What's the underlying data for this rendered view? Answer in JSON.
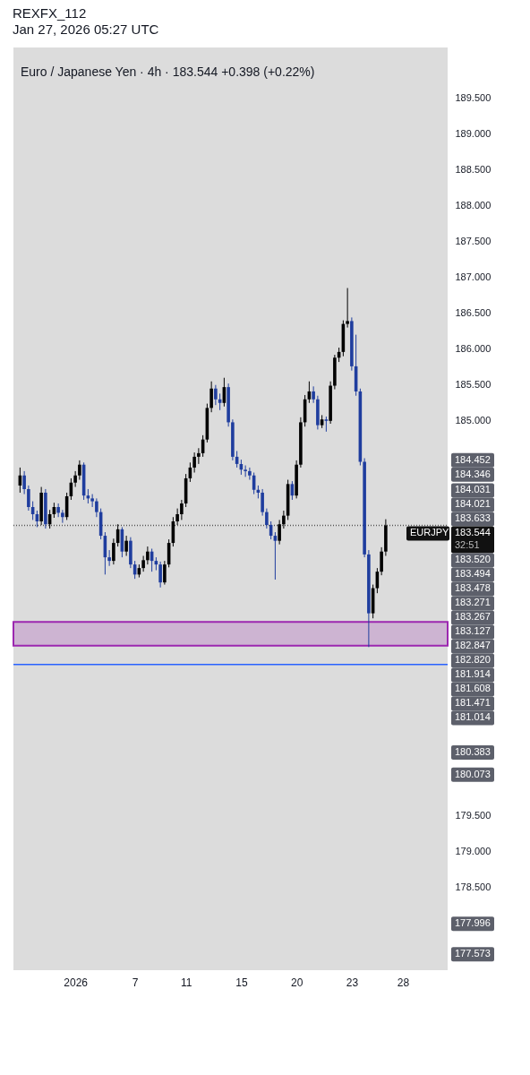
{
  "chart_data": {
    "type": "candlestick",
    "title": "REXFX_112",
    "subtitle": "Jan 27, 2026 05:27 UTC",
    "categories": [
      null,
      null,
      null,
      null,
      null,
      null,
      null,
      null,
      null,
      null,
      null,
      null,
      null,
      "2026",
      null,
      null,
      null,
      null,
      null,
      null,
      null,
      null,
      null,
      null,
      null,
      null,
      null,
      "7",
      null,
      null,
      null,
      null,
      null,
      null,
      null,
      null,
      null,
      null,
      null,
      "11",
      null,
      null,
      null,
      null,
      null,
      null,
      null,
      null,
      null,
      null,
      null,
      null,
      "15",
      null,
      null,
      null,
      null,
      null,
      null,
      null,
      null,
      null,
      null,
      null,
      null,
      "20",
      null,
      null,
      null,
      null,
      null,
      null,
      null,
      null,
      null,
      null,
      null,
      null,
      "23",
      null,
      null,
      null,
      null,
      null,
      null,
      null,
      null,
      null,
      null,
      null,
      "28",
      null,
      null,
      null,
      null,
      null,
      null,
      null,
      null,
      null
    ],
    "ohlc": [
      [
        184.1,
        184.35,
        184.0,
        184.24
      ],
      [
        184.24,
        184.3,
        183.98,
        184.05
      ],
      [
        184.05,
        184.1,
        183.75,
        183.8
      ],
      [
        183.8,
        183.88,
        183.62,
        183.7
      ],
      [
        183.7,
        183.75,
        183.52,
        183.6
      ],
      [
        183.6,
        184.08,
        183.55,
        184.0
      ],
      [
        184.0,
        184.05,
        183.5,
        183.56
      ],
      [
        183.56,
        183.76,
        183.5,
        183.7
      ],
      [
        183.7,
        183.86,
        183.65,
        183.8
      ],
      [
        183.8,
        183.85,
        183.66,
        183.72
      ],
      [
        183.72,
        183.76,
        183.58,
        183.66
      ],
      [
        183.66,
        184.0,
        183.62,
        183.95
      ],
      [
        183.95,
        184.2,
        183.9,
        184.14
      ],
      [
        184.14,
        184.3,
        184.08,
        184.24
      ],
      [
        184.24,
        184.45,
        184.18,
        184.39
      ],
      [
        184.39,
        184.42,
        183.9,
        183.96
      ],
      [
        183.96,
        184.05,
        183.85,
        183.92
      ],
      [
        183.92,
        183.98,
        183.8,
        183.88
      ],
      [
        183.88,
        183.92,
        183.66,
        183.73
      ],
      [
        183.73,
        183.78,
        183.35,
        183.4
      ],
      [
        183.4,
        183.45,
        182.86,
        183.1
      ],
      [
        183.1,
        183.2,
        182.98,
        183.05
      ],
      [
        183.05,
        183.36,
        183.0,
        183.3
      ],
      [
        183.3,
        183.56,
        183.25,
        183.49
      ],
      [
        183.49,
        183.52,
        183.1,
        183.18
      ],
      [
        183.18,
        183.4,
        183.12,
        183.33
      ],
      [
        183.33,
        183.38,
        182.95,
        183.0
      ],
      [
        183.0,
        183.05,
        182.8,
        182.86
      ],
      [
        182.86,
        183.0,
        182.82,
        182.95
      ],
      [
        182.95,
        183.12,
        182.9,
        183.06
      ],
      [
        183.06,
        183.25,
        183.0,
        183.18
      ],
      [
        183.18,
        183.22,
        182.9,
        183.05
      ],
      [
        183.05,
        183.1,
        182.92,
        183.0
      ],
      [
        183.0,
        183.04,
        182.68,
        182.75
      ],
      [
        182.75,
        183.05,
        182.72,
        183.0
      ],
      [
        183.0,
        183.35,
        182.96,
        183.3
      ],
      [
        183.3,
        183.66,
        183.25,
        183.6
      ],
      [
        183.6,
        183.78,
        183.55,
        183.7
      ],
      [
        183.7,
        183.9,
        183.62,
        183.85
      ],
      [
        183.85,
        184.26,
        183.8,
        184.2
      ],
      [
        184.2,
        184.42,
        184.15,
        184.35
      ],
      [
        184.35,
        184.56,
        184.28,
        184.5
      ],
      [
        184.5,
        184.62,
        184.4,
        184.55
      ],
      [
        184.55,
        184.8,
        184.5,
        184.74
      ],
      [
        184.74,
        185.24,
        184.7,
        185.18
      ],
      [
        185.18,
        185.55,
        185.12,
        185.45
      ],
      [
        185.45,
        185.5,
        185.22,
        185.3
      ],
      [
        185.3,
        185.38,
        185.15,
        185.25
      ],
      [
        185.25,
        185.6,
        185.2,
        185.47
      ],
      [
        185.47,
        185.52,
        184.92,
        184.98
      ],
      [
        184.98,
        185.02,
        184.45,
        184.5
      ],
      [
        184.5,
        184.58,
        184.35,
        184.4
      ],
      [
        184.4,
        184.46,
        184.25,
        184.32
      ],
      [
        184.32,
        184.38,
        184.22,
        184.3
      ],
      [
        184.3,
        184.35,
        184.18,
        184.24
      ],
      [
        184.24,
        184.28,
        183.98,
        184.04
      ],
      [
        184.04,
        184.1,
        183.92,
        184.0
      ],
      [
        184.0,
        184.05,
        183.68,
        183.73
      ],
      [
        183.73,
        183.78,
        183.5,
        183.55
      ],
      [
        183.55,
        183.6,
        183.35,
        183.4
      ],
      [
        183.4,
        183.45,
        182.79,
        183.33
      ],
      [
        183.33,
        183.62,
        183.28,
        183.56
      ],
      [
        183.56,
        183.75,
        183.5,
        183.68
      ],
      [
        183.68,
        184.18,
        183.62,
        184.12
      ],
      [
        184.12,
        184.16,
        183.9,
        183.96
      ],
      [
        183.96,
        184.45,
        183.92,
        184.39
      ],
      [
        184.39,
        185.05,
        184.35,
        184.98
      ],
      [
        184.98,
        185.36,
        184.92,
        185.3
      ],
      [
        185.3,
        185.55,
        185.25,
        185.41
      ],
      [
        185.41,
        185.48,
        185.25,
        185.3
      ],
      [
        185.3,
        185.35,
        184.88,
        184.94
      ],
      [
        184.94,
        185.08,
        184.9,
        185.02
      ],
      [
        185.02,
        185.06,
        184.85,
        185.0
      ],
      [
        185.0,
        185.55,
        184.96,
        185.49
      ],
      [
        185.49,
        185.92,
        185.44,
        185.88
      ],
      [
        185.88,
        186.02,
        185.82,
        185.96
      ],
      [
        185.96,
        186.4,
        185.9,
        186.35
      ],
      [
        186.35,
        186.85,
        186.3,
        186.39
      ],
      [
        186.39,
        186.44,
        185.7,
        185.76
      ],
      [
        185.76,
        186.2,
        185.35,
        185.41
      ],
      [
        185.41,
        185.45,
        184.38,
        184.43
      ],
      [
        184.43,
        184.48,
        183.1,
        183.14
      ],
      [
        183.14,
        183.2,
        181.85,
        182.32
      ],
      [
        182.32,
        182.72,
        182.25,
        182.67
      ],
      [
        182.67,
        182.95,
        182.6,
        182.9
      ],
      [
        182.9,
        183.24,
        182.85,
        183.18
      ],
      [
        183.18,
        183.63,
        183.12,
        183.544
      ],
      null,
      null,
      null,
      null,
      null,
      null,
      null,
      null,
      null,
      null,
      null,
      null,
      null
    ],
    "colors": [
      "#000000",
      "#1f3d9e",
      "#1f3d9e",
      "#1f3d9e",
      "#1f3d9e",
      "#000000",
      "#1f3d9e",
      "#000000",
      "#000000",
      "#1f3d9e",
      "#1f3d9e",
      "#000000",
      "#000000",
      "#000000",
      "#000000",
      "#1f3d9e",
      "#1f3d9e",
      "#1f3d9e",
      "#1f3d9e",
      "#1f3d9e",
      "#1f3d9e",
      "#1f3d9e",
      "#000000",
      "#000000",
      "#1f3d9e",
      "#000000",
      "#1f3d9e",
      "#1f3d9e",
      "#000000",
      "#000000",
      "#000000",
      "#1f3d9e",
      "#1f3d9e",
      "#1f3d9e",
      "#000000",
      "#000000",
      "#000000",
      "#000000",
      "#000000",
      "#000000",
      "#000000",
      "#000000",
      "#000000",
      "#000000",
      "#000000",
      "#000000",
      "#1f3d9e",
      "#1f3d9e",
      "#000000",
      "#1f3d9e",
      "#1f3d9e",
      "#1f3d9e",
      "#1f3d9e",
      "#1f3d9e",
      "#1f3d9e",
      "#1f3d9e",
      "#1f3d9e",
      "#1f3d9e",
      "#1f3d9e",
      "#1f3d9e",
      "#1f3d9e",
      "#000000",
      "#000000",
      "#000000",
      "#1f3d9e",
      "#000000",
      "#000000",
      "#000000",
      "#000000",
      "#1f3d9e",
      "#1f3d9e",
      "#000000",
      "#1f3d9e",
      "#000000",
      "#000000",
      "#000000",
      "#000000",
      "#000000",
      "#1f3d9e",
      "#1f3d9e",
      "#1f3d9e",
      "#1f3d9e",
      "#1f3d9e",
      "#000000",
      "#000000",
      "#000000",
      "#000000",
      null,
      null,
      null,
      null,
      null,
      null,
      null,
      null,
      null,
      null,
      null,
      null,
      null
    ],
    "ylim": [
      177.35,
      190.2
    ],
    "yticks": [
      {
        "value": 178.5,
        "label": "178.500"
      },
      {
        "value": 179,
        "label": "179.000"
      },
      {
        "value": 179.5,
        "label": "179.500"
      },
      {
        "value": 185,
        "label": "185.000"
      },
      {
        "value": 185.5,
        "label": "185.500"
      },
      {
        "value": 186,
        "label": "186.000"
      },
      {
        "value": 186.5,
        "label": "186.500"
      },
      {
        "value": 187,
        "label": "187.000"
      },
      {
        "value": 187.5,
        "label": "187.500"
      },
      {
        "value": 188,
        "label": "188.000"
      },
      {
        "value": 188.5,
        "label": "188.500"
      },
      {
        "value": 189,
        "label": "189.000"
      },
      {
        "value": 189.5,
        "label": "189.500"
      }
    ],
    "bands": [
      {
        "axis": "y",
        "from": 181.87,
        "to": 182.2,
        "color": "#9c27b0"
      }
    ],
    "ref_lines": [
      {
        "axis": "y",
        "value": 181.608,
        "color": "#2962ff",
        "line_style": "solid"
      },
      {
        "axis": "y",
        "value": 183.544,
        "color": "#555555",
        "line_style": "dotted"
      }
    ],
    "annotations": [
      "Euro / Japanese Yen · 4h · 183.544 +0.398 (+0.22%)",
      "EURJPY",
      "32:51",
      "184.452",
      "184.346",
      "184.031",
      "184.021",
      "183.633",
      "183.544",
      "183.520",
      "183.494",
      "183.478",
      "183.271",
      "183.267",
      "183.127",
      "182.847",
      "182.820",
      "181.914",
      "181.608",
      "181.471",
      "181.014",
      "180.383",
      "180.073",
      "177.996",
      "177.573"
    ]
  }
}
